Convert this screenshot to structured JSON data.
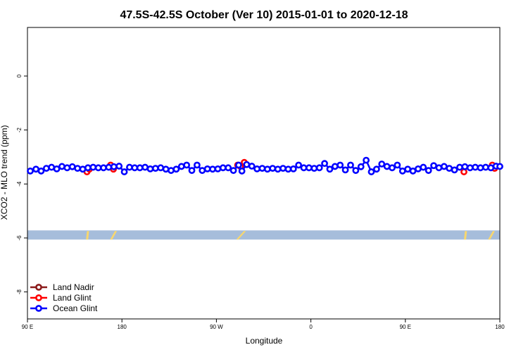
{
  "chart_data": {
    "type": "line",
    "title": "47.5S-42.5S October (Ver 10)   2015-01-01 to 2020-12-18",
    "xlabel": "Longitude",
    "ylabel": "XCO2 - MLO trend (ppm)",
    "xlim": [
      0,
      100
    ],
    "ylim": [
      -9,
      1.8
    ],
    "x_ticks": [
      {
        "x": 0,
        "label": "90 E"
      },
      {
        "x": 20,
        "label": "180"
      },
      {
        "x": 40,
        "label": "90 W"
      },
      {
        "x": 60,
        "label": "0"
      },
      {
        "x": 80,
        "label": "90 E"
      },
      {
        "x": 100,
        "label": "180"
      }
    ],
    "y_ticks": [
      0,
      -2,
      -4,
      -6,
      -8
    ],
    "land_band": {
      "y_range": [
        -5.72,
        -6.06
      ],
      "color": "#a6bddb",
      "land_color": "#f8d76e",
      "land_segments": [
        [
          12.4,
          12.6
        ],
        [
          17.5,
          18.5
        ],
        [
          44.2,
          45.8
        ],
        [
          92.4,
          92.6
        ],
        [
          97.5,
          98.5
        ]
      ]
    },
    "legend": {
      "position": "bottom-left",
      "items": [
        {
          "label": "Land Nadir",
          "color": "#8b1a1a"
        },
        {
          "label": "Land Glint",
          "color": "#ff0000"
        },
        {
          "label": "Ocean Glint",
          "color": "#0000ff"
        }
      ]
    },
    "series": [
      {
        "name": "Land Nadir",
        "color": "#8b1a1a",
        "x": [],
        "y": []
      },
      {
        "name": "Land Glint",
        "color": "#ff0000",
        "x": [
          12.6,
          13.1,
          17.6,
          18.2,
          44.5,
          45.1,
          45.9,
          92.4,
          98.4,
          98.9
        ],
        "y": [
          -3.55,
          -3.45,
          -3.3,
          -3.45,
          -3.3,
          -3.35,
          -3.2,
          -3.55,
          -3.3,
          -3.42
        ]
      },
      {
        "name": "Ocean Glint",
        "color": "#0000ff",
        "x": [
          0.6,
          1.8,
          2.9,
          4.0,
          5.1,
          6.2,
          7.3,
          8.4,
          9.5,
          10.6,
          11.7,
          12.8,
          13.9,
          15.0,
          16.1,
          17.2,
          18.3,
          19.4,
          20.5,
          21.6,
          22.7,
          23.8,
          24.9,
          26.0,
          27.1,
          28.2,
          29.3,
          30.4,
          31.5,
          32.6,
          33.7,
          34.8,
          35.9,
          37.0,
          38.1,
          39.2,
          40.3,
          41.4,
          42.5,
          43.6,
          44.7,
          45.4,
          46.4,
          47.5,
          48.6,
          49.7,
          50.8,
          51.9,
          53.0,
          54.1,
          55.2,
          56.3,
          57.4,
          58.5,
          59.6,
          60.7,
          61.8,
          62.9,
          64.0,
          65.1,
          66.2,
          67.3,
          68.4,
          69.5,
          70.6,
          71.7,
          72.8,
          73.9,
          75.0,
          76.1,
          77.2,
          78.3,
          79.4,
          80.5,
          81.6,
          82.7,
          83.8,
          84.9,
          86.0,
          87.1,
          88.2,
          89.3,
          90.4,
          91.5,
          92.6,
          93.7,
          94.8,
          95.9,
          97.0,
          98.1,
          99.2,
          100.0
        ],
        "y": [
          -3.52,
          -3.45,
          -3.52,
          -3.42,
          -3.38,
          -3.44,
          -3.35,
          -3.4,
          -3.36,
          -3.42,
          -3.45,
          -3.4,
          -3.38,
          -3.4,
          -3.4,
          -3.38,
          -3.36,
          -3.34,
          -3.55,
          -3.38,
          -3.4,
          -3.4,
          -3.38,
          -3.44,
          -3.42,
          -3.4,
          -3.45,
          -3.5,
          -3.45,
          -3.35,
          -3.3,
          -3.5,
          -3.3,
          -3.5,
          -3.44,
          -3.45,
          -3.44,
          -3.4,
          -3.4,
          -3.5,
          -3.3,
          -3.52,
          -3.28,
          -3.34,
          -3.44,
          -3.42,
          -3.45,
          -3.42,
          -3.45,
          -3.42,
          -3.45,
          -3.44,
          -3.3,
          -3.4,
          -3.4,
          -3.42,
          -3.4,
          -3.24,
          -3.45,
          -3.35,
          -3.3,
          -3.48,
          -3.3,
          -3.5,
          -3.36,
          -3.12,
          -3.55,
          -3.45,
          -3.26,
          -3.35,
          -3.4,
          -3.3,
          -3.52,
          -3.45,
          -3.52,
          -3.44,
          -3.38,
          -3.5,
          -3.32,
          -3.4,
          -3.35,
          -3.42,
          -3.48,
          -3.38,
          -3.36,
          -3.4,
          -3.38,
          -3.4,
          -3.38,
          -3.4,
          -3.34,
          -3.35
        ]
      }
    ]
  }
}
